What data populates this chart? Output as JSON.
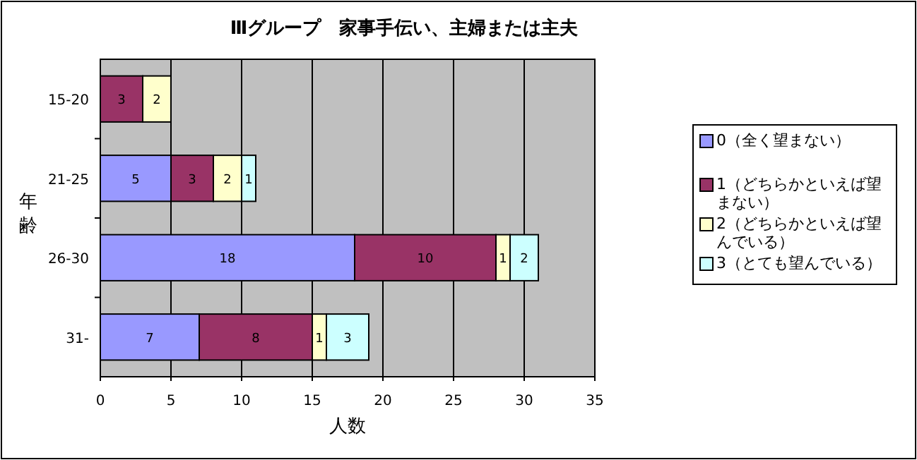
{
  "chart_data": {
    "type": "bar",
    "orientation": "horizontal",
    "stacked": true,
    "title": "Ⅲグループ　家事手伝い、主婦または主夫",
    "xlabel": "人数",
    "ylabel": "年齢",
    "categories": [
      "15-20",
      "21-25",
      "26-30",
      "31-"
    ],
    "series": [
      {
        "name": "0（全く望まない）",
        "color": "#9999ff",
        "values": [
          null,
          5,
          18,
          7
        ]
      },
      {
        "name": "1（どちらかといえば望まない）",
        "color": "#993366",
        "values": [
          3,
          3,
          10,
          8
        ]
      },
      {
        "name": "2（どちらかといえば望んでいる）",
        "color": "#ffffcc",
        "values": [
          2,
          2,
          1,
          1
        ]
      },
      {
        "name": "3（とても望んでいる）",
        "color": "#ccffff",
        "values": [
          null,
          1,
          2,
          3
        ]
      }
    ],
    "xlim": [
      0,
      35
    ],
    "xticks": [
      0,
      5,
      10,
      15,
      20,
      25,
      30,
      35
    ],
    "grid": "x",
    "legend": "right",
    "data_labels": true
  }
}
